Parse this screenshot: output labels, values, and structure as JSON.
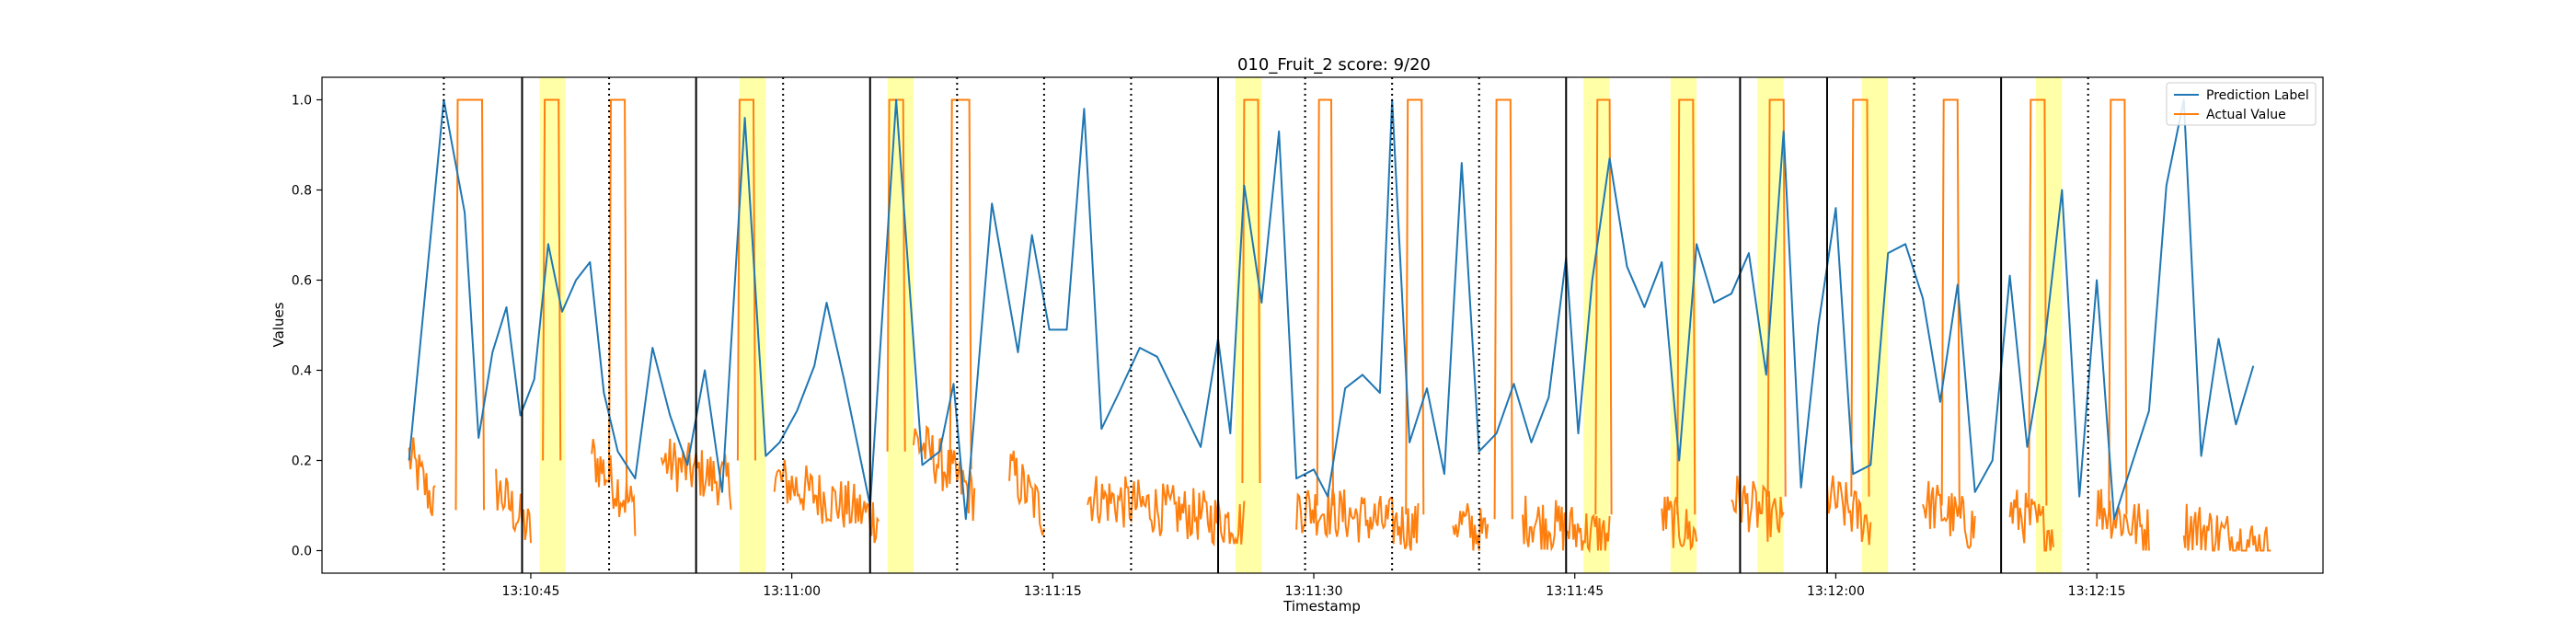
{
  "chart_data": {
    "type": "line",
    "title": "010_Fruit_2 score: 9/20",
    "xlabel": "Timestamp",
    "ylabel": "Values",
    "xlim": [
      "13:10:33",
      "13:12:28"
    ],
    "ylim": [
      -0.05,
      1.05
    ],
    "x_ticks": [
      "13:10:45",
      "13:11:00",
      "13:11:15",
      "13:11:30",
      "13:11:45",
      "13:12:00",
      "13:12:15"
    ],
    "y_ticks": [
      "0.0",
      "0.2",
      "0.4",
      "0.6",
      "0.8",
      "1.0"
    ],
    "grid": false,
    "legend": {
      "position": "top-right",
      "entries": [
        "Prediction Label",
        "Actual Value"
      ]
    },
    "colors": {
      "prediction": "#1f77b4",
      "actual": "#ff7f0e",
      "highlight": "#ffff99",
      "boundary": "#000000"
    },
    "series": [
      {
        "name": "Prediction Label",
        "color": "#1f77b4",
        "points": [
          [
            "13:10:38.0",
            0.2
          ],
          [
            "13:10:40.0",
            1.0
          ],
          [
            "13:10:41.2",
            0.75
          ],
          [
            "13:10:42.0",
            0.25
          ],
          [
            "13:10:42.8",
            0.44
          ],
          [
            "13:10:43.6",
            0.54
          ],
          [
            "13:10:44.4",
            0.3
          ],
          [
            "13:10:45.2",
            0.38
          ],
          [
            "13:10:46.0",
            0.68
          ],
          [
            "13:10:46.8",
            0.53
          ],
          [
            "13:10:47.6",
            0.6
          ],
          [
            "13:10:48.4",
            0.64
          ],
          [
            "13:10:49.2",
            0.35
          ],
          [
            "13:10:50.0",
            0.22
          ],
          [
            "13:10:51.0",
            0.16
          ],
          [
            "13:10:52.0",
            0.45
          ],
          [
            "13:10:53.0",
            0.3
          ],
          [
            "13:10:54.0",
            0.19
          ],
          [
            "13:10:55.0",
            0.4
          ],
          [
            "13:10:56.0",
            0.13
          ],
          [
            "13:10:57.3",
            0.96
          ],
          [
            "13:10:58.5",
            0.21
          ],
          [
            "13:10:59.3",
            0.24
          ],
          [
            "13:11:00.3",
            0.31
          ],
          [
            "13:11:01.3",
            0.41
          ],
          [
            "13:11:02.0",
            0.55
          ],
          [
            "13:11:03.0",
            0.38
          ],
          [
            "13:11:04.5",
            0.1
          ],
          [
            "13:11:06.0",
            1.0
          ],
          [
            "13:11:07.5",
            0.19
          ],
          [
            "13:11:08.5",
            0.22
          ],
          [
            "13:11:09.3",
            0.37
          ],
          [
            "13:11:10.0",
            0.07
          ],
          [
            "13:11:11.5",
            0.77
          ],
          [
            "13:11:13.0",
            0.44
          ],
          [
            "13:11:13.8",
            0.7
          ],
          [
            "13:11:14.8",
            0.49
          ],
          [
            "13:11:15.8",
            0.49
          ],
          [
            "13:11:16.8",
            0.98
          ],
          [
            "13:11:17.8",
            0.27
          ],
          [
            "13:11:18.8",
            0.35
          ],
          [
            "13:11:20.0",
            0.45
          ],
          [
            "13:11:21.0",
            0.43
          ],
          [
            "13:11:22.0",
            0.35
          ],
          [
            "13:11:23.5",
            0.23
          ],
          [
            "13:11:24.5",
            0.47
          ],
          [
            "13:11:25.2",
            0.26
          ],
          [
            "13:11:26.0",
            0.81
          ],
          [
            "13:11:27.0",
            0.55
          ],
          [
            "13:11:28.0",
            0.93
          ],
          [
            "13:11:29.0",
            0.16
          ],
          [
            "13:11:30.0",
            0.18
          ],
          [
            "13:11:30.8",
            0.12
          ],
          [
            "13:11:31.8",
            0.36
          ],
          [
            "13:11:32.8",
            0.39
          ],
          [
            "13:11:33.8",
            0.35
          ],
          [
            "13:11:34.5",
            1.0
          ],
          [
            "13:11:35.5",
            0.24
          ],
          [
            "13:11:36.5",
            0.36
          ],
          [
            "13:11:37.5",
            0.17
          ],
          [
            "13:11:38.5",
            0.86
          ],
          [
            "13:11:39.5",
            0.22
          ],
          [
            "13:11:40.5",
            0.26
          ],
          [
            "13:11:41.5",
            0.37
          ],
          [
            "13:11:42.5",
            0.24
          ],
          [
            "13:11:43.5",
            0.34
          ],
          [
            "13:11:44.5",
            0.65
          ],
          [
            "13:11:45.2",
            0.26
          ],
          [
            "13:11:46.0",
            0.6
          ],
          [
            "13:11:47.0",
            0.87
          ],
          [
            "13:11:48.0",
            0.63
          ],
          [
            "13:11:49.0",
            0.54
          ],
          [
            "13:11:50.0",
            0.64
          ],
          [
            "13:11:51.0",
            0.2
          ],
          [
            "13:11:52.0",
            0.68
          ],
          [
            "13:11:53.0",
            0.55
          ],
          [
            "13:11:54.0",
            0.57
          ],
          [
            "13:11:55.0",
            0.66
          ],
          [
            "13:11:56.0",
            0.39
          ],
          [
            "13:11:57.0",
            0.93
          ],
          [
            "13:11:58.0",
            0.14
          ],
          [
            "13:11:59.0",
            0.5
          ],
          [
            "13:12:00.0",
            0.76
          ],
          [
            "13:12:01.0",
            0.17
          ],
          [
            "13:12:02.0",
            0.19
          ],
          [
            "13:12:03.0",
            0.66
          ],
          [
            "13:12:04.0",
            0.68
          ],
          [
            "13:12:05.0",
            0.56
          ],
          [
            "13:12:06.0",
            0.33
          ],
          [
            "13:12:07.0",
            0.59
          ],
          [
            "13:12:08.0",
            0.13
          ],
          [
            "13:12:09.0",
            0.2
          ],
          [
            "13:12:10.0",
            0.61
          ],
          [
            "13:12:11.0",
            0.23
          ],
          [
            "13:12:12.0",
            0.46
          ],
          [
            "13:12:13.0",
            0.8
          ],
          [
            "13:12:14.0",
            0.12
          ],
          [
            "13:12:15.0",
            0.6
          ],
          [
            "13:12:16.0",
            0.07
          ],
          [
            "13:12:18.0",
            0.31
          ],
          [
            "13:12:19.0",
            0.81
          ],
          [
            "13:12:20.0",
            1.0
          ],
          [
            "13:12:21.0",
            0.21
          ],
          [
            "13:12:22.0",
            0.47
          ],
          [
            "13:12:23.0",
            0.28
          ],
          [
            "13:12:24.0",
            0.41
          ]
        ]
      },
      {
        "name": "Actual Value",
        "color": "#ff7f0e",
        "baseline_segments": [
          [
            "13:10:38.0",
            "13:10:39.5",
            0.21,
            0.1
          ],
          [
            "13:10:43.0",
            "13:10:45.0",
            0.14,
            0.04
          ],
          [
            "13:10:48.5",
            "13:10:51.0",
            0.21,
            0.09
          ],
          [
            "13:10:52.5",
            "13:10:56.5",
            0.2,
            0.15
          ],
          [
            "13:10:59.0",
            "13:11:05.0",
            0.16,
            0.07
          ],
          [
            "13:11:07.0",
            "13:11:10.5",
            0.25,
            0.12
          ],
          [
            "13:11:12.5",
            "13:11:14.5",
            0.18,
            0.08
          ],
          [
            "13:11:17.0",
            "13:11:26.0",
            0.12,
            0.06
          ],
          [
            "13:11:29.0",
            "13:11:36.0",
            0.1,
            0.05
          ],
          [
            "13:11:38.0",
            "13:11:40.0",
            0.07,
            0.03
          ],
          [
            "13:11:42.0",
            "13:11:47.0",
            0.07,
            0.03
          ],
          [
            "13:11:50.0",
            "13:11:52.0",
            0.08,
            0.03
          ],
          [
            "13:11:54.0",
            "13:11:57.0",
            0.12,
            0.06
          ],
          [
            "13:11:59.5",
            "13:12:02.0",
            0.12,
            0.06
          ],
          [
            "13:12:05.0",
            "13:12:08.0",
            0.11,
            0.05
          ],
          [
            "13:12:10.0",
            "13:12:12.5",
            0.09,
            0.04
          ],
          [
            "13:12:15.0",
            "13:12:18.0",
            0.1,
            0.04
          ],
          [
            "13:12:20.0",
            "13:12:25.0",
            0.06,
            0.0
          ]
        ],
        "pulses": [
          [
            "13:10:40.8",
            "13:10:42.2",
            0.09
          ],
          [
            "13:10:45.8",
            "13:10:46.6",
            0.2
          ],
          [
            "13:10:49.6",
            "13:10:50.4",
            0.15
          ],
          [
            "13:10:57.0",
            "13:10:57.8",
            0.2
          ],
          [
            "13:11:05.6",
            "13:11:06.4",
            0.22
          ],
          [
            "13:11:09.2",
            "13:11:10.2",
            0.18
          ],
          [
            "13:11:26.0",
            "13:11:26.8",
            0.15
          ],
          [
            "13:11:30.3",
            "13:11:31.0",
            0.1
          ],
          [
            "13:11:35.4",
            "13:11:36.2",
            0.08
          ],
          [
            "13:11:40.5",
            "13:11:41.3",
            0.07
          ],
          [
            "13:11:46.3",
            "13:11:47.0",
            0.08
          ],
          [
            "13:11:51.0",
            "13:11:51.8",
            0.08
          ],
          [
            "13:11:56.2",
            "13:11:57.0",
            0.12
          ],
          [
            "13:12:01.0",
            "13:12:01.8",
            0.12
          ],
          [
            "13:12:06.2",
            "13:12:07.0",
            0.1
          ],
          [
            "13:12:11.2",
            "13:12:12.0",
            0.1
          ],
          [
            "13:12:15.8",
            "13:12:16.6",
            0.08
          ]
        ]
      }
    ],
    "highlight_intervals": [
      [
        "13:10:45.5",
        "13:10:47.0"
      ],
      [
        "13:10:57.0",
        "13:10:58.5"
      ],
      [
        "13:11:05.5",
        "13:11:07.0"
      ],
      [
        "13:11:25.5",
        "13:11:27.0"
      ],
      [
        "13:11:45.5",
        "13:11:47.0"
      ],
      [
        "13:11:50.5",
        "13:11:52.0"
      ],
      [
        "13:11:55.5",
        "13:11:57.0"
      ],
      [
        "13:12:01.5",
        "13:12:03.0"
      ],
      [
        "13:12:11.5",
        "13:12:13.0"
      ]
    ],
    "solid_vlines": [
      "13:10:44.5",
      "13:10:54.5",
      "13:11:04.5",
      "13:11:24.5",
      "13:11:44.5",
      "13:11:54.5",
      "13:11:59.5",
      "13:12:09.5"
    ],
    "dotted_vlines": [
      "13:10:40.0",
      "13:10:49.5",
      "13:10:59.5",
      "13:11:09.5",
      "13:11:14.5",
      "13:11:19.5",
      "13:11:29.5",
      "13:11:34.5",
      "13:11:39.5",
      "13:12:04.5",
      "13:12:14.5"
    ]
  }
}
